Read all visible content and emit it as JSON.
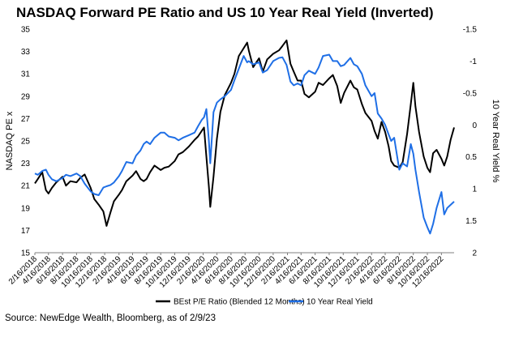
{
  "chart_data": {
    "type": "line",
    "title": "NASDAQ Forward PE Ratio and US 10 Year Real Yield (Inverted)",
    "source": "Source: NewEdge Wealth, Bloomberg, as of 2/9/23",
    "y_left": {
      "label": "NASDAQ PE x",
      "min": 15,
      "max": 35,
      "ticks": [
        "15",
        "17",
        "19",
        "21",
        "23",
        "25",
        "27",
        "29",
        "31",
        "33",
        "35"
      ]
    },
    "y_right": {
      "label": "10 Year Real Yield %",
      "min": -1.5,
      "max": 2,
      "inverted": true,
      "ticks": [
        "-1.5",
        "-1",
        "-0.5",
        "0",
        "0.5",
        "1",
        "1.5",
        "2"
      ]
    },
    "x_range": [
      "2/16/2018",
      "2/9/2023"
    ],
    "x_ticks": [
      "2/16/2018",
      "4/16/2018",
      "6/16/2018",
      "8/16/2018",
      "10/16/2018",
      "12/16/2018",
      "2/16/2019",
      "4/16/2019",
      "6/16/2019",
      "8/16/2019",
      "10/16/2019",
      "12/16/2019",
      "2/16/2020",
      "4/16/2020",
      "6/16/2020",
      "8/16/2020",
      "10/16/2020",
      "12/16/2020",
      "2/16/2021",
      "4/16/2021",
      "6/16/2021",
      "8/16/2021",
      "10/16/2021",
      "12/16/2021",
      "2/16/2022",
      "4/16/2022",
      "6/16/2022",
      "8/16/2022",
      "10/16/2022",
      "12/16/2022"
    ],
    "grid": false,
    "legend_position": "bottom",
    "series": [
      {
        "name": "BEst P/E Ratio (Blended 12 Months)",
        "axis": "left",
        "color": "#000000",
        "points": [
          [
            "2/16/2018",
            21.2
          ],
          [
            "3/1/2018",
            21.6
          ],
          [
            "3/20/2018",
            22.2
          ],
          [
            "4/5/2018",
            20.6
          ],
          [
            "4/16/2018",
            20.3
          ],
          [
            "5/1/2018",
            20.8
          ],
          [
            "5/20/2018",
            21.3
          ],
          [
            "6/16/2018",
            21.8
          ],
          [
            "7/1/2018",
            21.0
          ],
          [
            "7/20/2018",
            21.4
          ],
          [
            "8/16/2018",
            21.3
          ],
          [
            "9/1/2018",
            21.7
          ],
          [
            "9/20/2018",
            22.0
          ],
          [
            "10/16/2018",
            20.8
          ],
          [
            "11/1/2018",
            19.8
          ],
          [
            "11/20/2018",
            19.3
          ],
          [
            "12/10/2018",
            18.7
          ],
          [
            "12/24/2018",
            17.4
          ],
          [
            "1/10/2019",
            18.6
          ],
          [
            "1/25/2019",
            19.6
          ],
          [
            "2/16/2019",
            20.2
          ],
          [
            "3/1/2019",
            20.6
          ],
          [
            "3/20/2019",
            21.4
          ],
          [
            "4/16/2019",
            21.9
          ],
          [
            "5/1/2019",
            22.3
          ],
          [
            "5/20/2019",
            21.6
          ],
          [
            "6/3/2019",
            21.4
          ],
          [
            "6/16/2019",
            21.6
          ],
          [
            "7/1/2019",
            22.2
          ],
          [
            "7/20/2019",
            22.8
          ],
          [
            "8/16/2019",
            22.4
          ],
          [
            "9/1/2019",
            22.6
          ],
          [
            "9/20/2019",
            22.7
          ],
          [
            "10/16/2019",
            23.2
          ],
          [
            "11/1/2019",
            23.8
          ],
          [
            "11/20/2019",
            24.0
          ],
          [
            "12/16/2019",
            24.5
          ],
          [
            "1/10/2020",
            25.1
          ],
          [
            "1/25/2020",
            25.4
          ],
          [
            "2/10/2020",
            25.9
          ],
          [
            "2/20/2020",
            26.2
          ],
          [
            "3/1/2020",
            23.6
          ],
          [
            "3/12/2020",
            20.9
          ],
          [
            "3/18/2020",
            19.1
          ],
          [
            "4/1/2020",
            21.8
          ],
          [
            "4/16/2020",
            25.2
          ],
          [
            "5/1/2020",
            27.6
          ],
          [
            "5/20/2020",
            29.1
          ],
          [
            "6/16/2020",
            30.2
          ],
          [
            "7/1/2020",
            31.0
          ],
          [
            "7/20/2020",
            32.6
          ],
          [
            "8/10/2020",
            33.3
          ],
          [
            "8/25/2020",
            33.8
          ],
          [
            "9/1/2020",
            33.1
          ],
          [
            "9/20/2020",
            31.6
          ],
          [
            "10/16/2020",
            32.4
          ],
          [
            "11/1/2020",
            31.2
          ],
          [
            "11/20/2020",
            32.3
          ],
          [
            "12/16/2020",
            32.8
          ],
          [
            "1/10/2021",
            33.1
          ],
          [
            "1/25/2021",
            33.5
          ],
          [
            "2/12/2021",
            34.0
          ],
          [
            "3/1/2021",
            31.9
          ],
          [
            "3/15/2021",
            31.2
          ],
          [
            "4/1/2021",
            30.4
          ],
          [
            "4/16/2021",
            30.4
          ],
          [
            "5/1/2021",
            29.2
          ],
          [
            "5/20/2021",
            28.9
          ],
          [
            "6/16/2021",
            29.4
          ],
          [
            "7/1/2021",
            30.2
          ],
          [
            "7/20/2021",
            30.0
          ],
          [
            "8/16/2021",
            30.6
          ],
          [
            "9/1/2021",
            30.9
          ],
          [
            "9/20/2021",
            29.9
          ],
          [
            "10/5/2021",
            28.4
          ],
          [
            "10/20/2021",
            29.3
          ],
          [
            "11/16/2021",
            30.4
          ],
          [
            "12/1/2021",
            29.8
          ],
          [
            "12/16/2021",
            29.6
          ],
          [
            "1/5/2022",
            28.3
          ],
          [
            "1/20/2022",
            27.5
          ],
          [
            "2/16/2022",
            26.8
          ],
          [
            "3/1/2022",
            25.9
          ],
          [
            "3/15/2022",
            25.2
          ],
          [
            "3/31/2022",
            26.7
          ],
          [
            "4/16/2022",
            25.8
          ],
          [
            "5/1/2022",
            24.5
          ],
          [
            "5/12/2022",
            23.2
          ],
          [
            "5/25/2022",
            22.8
          ],
          [
            "6/16/2022",
            22.6
          ],
          [
            "7/1/2022",
            23.1
          ],
          [
            "7/20/2022",
            25.6
          ],
          [
            "8/5/2022",
            28.3
          ],
          [
            "8/16/2022",
            30.2
          ],
          [
            "8/25/2022",
            28.1
          ],
          [
            "9/10/2022",
            25.8
          ],
          [
            "9/30/2022",
            23.6
          ],
          [
            "10/16/2022",
            22.6
          ],
          [
            "10/28/2022",
            22.2
          ],
          [
            "11/10/2022",
            23.9
          ],
          [
            "11/25/2022",
            24.2
          ],
          [
            "12/16/2022",
            23.4
          ],
          [
            "12/28/2022",
            22.8
          ],
          [
            "1/10/2023",
            23.6
          ],
          [
            "1/25/2023",
            25.1
          ],
          [
            "2/9/2023",
            26.2
          ]
        ]
      },
      {
        "name": "10 Year Real Yield",
        "axis": "right",
        "color": "#1f6fe6",
        "points": [
          [
            "2/16/2018",
            0.76
          ],
          [
            "3/1/2018",
            0.78
          ],
          [
            "3/20/2018",
            0.72
          ],
          [
            "4/5/2018",
            0.7
          ],
          [
            "4/16/2018",
            0.78
          ],
          [
            "5/1/2018",
            0.85
          ],
          [
            "5/20/2018",
            0.88
          ],
          [
            "6/16/2018",
            0.83
          ],
          [
            "7/1/2018",
            0.78
          ],
          [
            "7/20/2018",
            0.8
          ],
          [
            "8/16/2018",
            0.76
          ],
          [
            "9/1/2018",
            0.8
          ],
          [
            "9/20/2018",
            0.92
          ],
          [
            "10/16/2018",
            1.04
          ],
          [
            "11/1/2018",
            1.08
          ],
          [
            "11/20/2018",
            1.1
          ],
          [
            "12/10/2018",
            0.98
          ],
          [
            "12/24/2018",
            0.96
          ],
          [
            "1/10/2019",
            0.94
          ],
          [
            "1/25/2019",
            0.9
          ],
          [
            "2/16/2019",
            0.8
          ],
          [
            "3/1/2019",
            0.72
          ],
          [
            "3/20/2019",
            0.58
          ],
          [
            "4/16/2019",
            0.6
          ],
          [
            "5/1/2019",
            0.48
          ],
          [
            "5/20/2019",
            0.4
          ],
          [
            "6/3/2019",
            0.3
          ],
          [
            "6/16/2019",
            0.26
          ],
          [
            "7/1/2019",
            0.3
          ],
          [
            "7/20/2019",
            0.2
          ],
          [
            "8/16/2019",
            0.12
          ],
          [
            "9/1/2019",
            0.12
          ],
          [
            "9/20/2019",
            0.18
          ],
          [
            "10/16/2019",
            0.2
          ],
          [
            "11/1/2019",
            0.24
          ],
          [
            "11/20/2019",
            0.2
          ],
          [
            "12/16/2019",
            0.16
          ],
          [
            "1/10/2020",
            0.12
          ],
          [
            "1/25/2020",
            0.02
          ],
          [
            "2/10/2020",
            -0.08
          ],
          [
            "2/20/2020",
            -0.12
          ],
          [
            "3/1/2020",
            -0.25
          ],
          [
            "3/12/2020",
            0.25
          ],
          [
            "3/18/2020",
            0.6
          ],
          [
            "4/1/2020",
            -0.2
          ],
          [
            "4/16/2020",
            -0.35
          ],
          [
            "5/1/2020",
            -0.4
          ],
          [
            "5/20/2020",
            -0.45
          ],
          [
            "6/16/2020",
            -0.55
          ],
          [
            "7/1/2020",
            -0.7
          ],
          [
            "7/20/2020",
            -0.88
          ],
          [
            "8/10/2020",
            -1.08
          ],
          [
            "8/25/2020",
            -0.98
          ],
          [
            "9/1/2020",
            -1.0
          ],
          [
            "9/20/2020",
            -0.95
          ],
          [
            "10/16/2020",
            -0.98
          ],
          [
            "11/1/2020",
            -0.82
          ],
          [
            "11/20/2020",
            -0.86
          ],
          [
            "12/16/2020",
            -1.0
          ],
          [
            "1/10/2021",
            -1.05
          ],
          [
            "1/25/2021",
            -1.06
          ],
          [
            "2/12/2021",
            -0.94
          ],
          [
            "3/1/2021",
            -0.68
          ],
          [
            "3/15/2021",
            -0.62
          ],
          [
            "4/1/2021",
            -0.65
          ],
          [
            "4/16/2021",
            -0.62
          ],
          [
            "5/1/2021",
            -0.78
          ],
          [
            "5/20/2021",
            -0.85
          ],
          [
            "6/16/2021",
            -0.8
          ],
          [
            "7/1/2021",
            -0.9
          ],
          [
            "7/20/2021",
            -1.08
          ],
          [
            "8/16/2021",
            -1.1
          ],
          [
            "9/1/2021",
            -1.0
          ],
          [
            "9/20/2021",
            -1.0
          ],
          [
            "10/5/2021",
            -0.92
          ],
          [
            "10/20/2021",
            -0.94
          ],
          [
            "11/16/2021",
            -1.05
          ],
          [
            "12/1/2021",
            -0.95
          ],
          [
            "12/16/2021",
            -0.92
          ],
          [
            "1/5/2022",
            -0.8
          ],
          [
            "1/20/2022",
            -0.62
          ],
          [
            "2/16/2022",
            -0.45
          ],
          [
            "3/1/2022",
            -0.5
          ],
          [
            "3/15/2022",
            -0.18
          ],
          [
            "3/31/2022",
            -0.1
          ],
          [
            "4/16/2022",
            0.0
          ],
          [
            "5/1/2022",
            0.15
          ],
          [
            "5/12/2022",
            0.25
          ],
          [
            "5/25/2022",
            0.2
          ],
          [
            "6/16/2022",
            0.7
          ],
          [
            "7/1/2022",
            0.6
          ],
          [
            "7/20/2022",
            0.65
          ],
          [
            "8/5/2022",
            0.3
          ],
          [
            "8/16/2022",
            0.45
          ],
          [
            "8/25/2022",
            0.7
          ],
          [
            "9/10/2022",
            1.05
          ],
          [
            "9/30/2022",
            1.45
          ],
          [
            "10/16/2022",
            1.6
          ],
          [
            "10/28/2022",
            1.7
          ],
          [
            "11/10/2022",
            1.55
          ],
          [
            "11/25/2022",
            1.3
          ],
          [
            "12/16/2022",
            1.05
          ],
          [
            "12/28/2022",
            1.4
          ],
          [
            "1/10/2023",
            1.3
          ],
          [
            "1/25/2023",
            1.25
          ],
          [
            "2/9/2023",
            1.2
          ]
        ]
      }
    ]
  }
}
